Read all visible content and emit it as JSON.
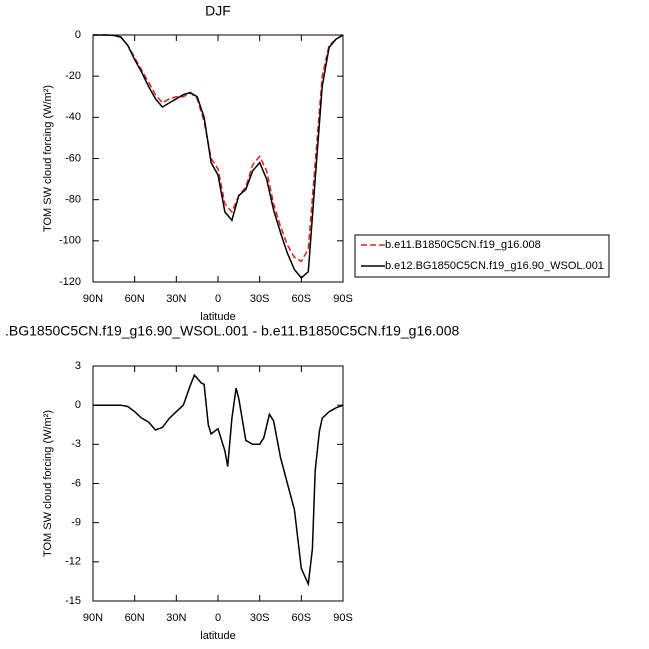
{
  "chart_data": [
    {
      "type": "line",
      "title": "DJF",
      "xlabel": "latitude",
      "ylabel": "TOM SW cloud forcing (W/m²)",
      "x": [
        90,
        85,
        80,
        75,
        70,
        65,
        60,
        55,
        50,
        45,
        40,
        35,
        30,
        25,
        20,
        15,
        10,
        5,
        0,
        -5,
        -10,
        -15,
        -20,
        -25,
        -30,
        -35,
        -40,
        -45,
        -50,
        -55,
        -60,
        -65,
        -70,
        -75,
        -80,
        -85,
        -90
      ],
      "series": [
        {
          "name": "b.e11.B1850C5CN.f19_g16.008",
          "color": "#e0201b",
          "dash": true,
          "values": [
            0,
            0,
            0,
            -0.2,
            -1,
            -5,
            -11,
            -17,
            -23,
            -29,
            -33,
            -31,
            -30,
            -30,
            -28,
            -31,
            -42,
            -60,
            -65,
            -82,
            -86,
            -78,
            -74,
            -63,
            -59,
            -66,
            -82,
            -93,
            -102,
            -108,
            -110,
            -104,
            -62,
            -20,
            -5,
            -2,
            0
          ]
        },
        {
          "name": "b.e12.BG1850C5CN.f19_g16.90_WSOL.001",
          "color": "#000000",
          "dash": false,
          "values": [
            0,
            0,
            0,
            -0.2,
            -1,
            -5,
            -12,
            -18,
            -25,
            -31,
            -35,
            -33,
            -31,
            -29,
            -28,
            -30,
            -40,
            -62,
            -68,
            -86,
            -90,
            -78,
            -75,
            -66,
            -62,
            -70,
            -85,
            -96,
            -106,
            -114,
            -118,
            -115,
            -70,
            -25,
            -6,
            -2,
            0
          ]
        }
      ],
      "xlim": [
        90,
        -90
      ],
      "xticks": [
        {
          "value": 90,
          "label": "90N"
        },
        {
          "value": 60,
          "label": "60N"
        },
        {
          "value": 30,
          "label": "30N"
        },
        0,
        {
          "value": -30,
          "label": "30S"
        },
        {
          "value": -60,
          "label": "60S"
        },
        {
          "value": -90,
          "label": "90S"
        }
      ],
      "ylim": [
        -120,
        0
      ],
      "yticks": [
        0,
        -20,
        -40,
        -60,
        -80,
        -100,
        -120
      ],
      "legend": "right"
    },
    {
      "type": "line",
      "title": ".BG1850C5CN.f19_g16.90_WSOL.001 - b.e11.B1850C5CN.f19_g16.008",
      "xlabel": "latitude",
      "ylabel": "TOM SW cloud forcing (W/m²)",
      "x": [
        90,
        85,
        80,
        75,
        70,
        65,
        60,
        55,
        50,
        45,
        40,
        35,
        30,
        25,
        20,
        17,
        12,
        10,
        7,
        5,
        0,
        -5,
        -7,
        -10,
        -13,
        -15,
        -20,
        -25,
        -30,
        -33,
        -37,
        -40,
        -45,
        -50,
        -55,
        -60,
        -65,
        -68,
        -70,
        -73,
        -75,
        -80,
        -85,
        -90
      ],
      "values": [
        0,
        0,
        0,
        0,
        0,
        -0.1,
        -0.5,
        -1.0,
        -1.3,
        -1.9,
        -1.7,
        -1.0,
        -0.5,
        0.0,
        1.5,
        2.3,
        1.7,
        1.6,
        -1.5,
        -2.2,
        -1.8,
        -3.5,
        -4.7,
        -1.0,
        1.3,
        0.5,
        -2.7,
        -3.0,
        -3.0,
        -2.5,
        -0.7,
        -1.2,
        -4.0,
        -6.0,
        -8.0,
        -12.5,
        -13.7,
        -11.0,
        -5.0,
        -2.0,
        -1.0,
        -0.5,
        -0.2,
        0
      ],
      "color": "#000000",
      "xlim": [
        90,
        -90
      ],
      "xticks": [
        {
          "value": 90,
          "label": "90N"
        },
        {
          "value": 60,
          "label": "60N"
        },
        {
          "value": 30,
          "label": "30N"
        },
        0,
        {
          "value": -30,
          "label": "30S"
        },
        {
          "value": -60,
          "label": "60S"
        },
        {
          "value": -90,
          "label": "90S"
        }
      ],
      "ylim": [
        -15,
        3
      ],
      "yticks": [
        3,
        0,
        -3,
        -6,
        -9,
        -12,
        -15
      ]
    }
  ]
}
